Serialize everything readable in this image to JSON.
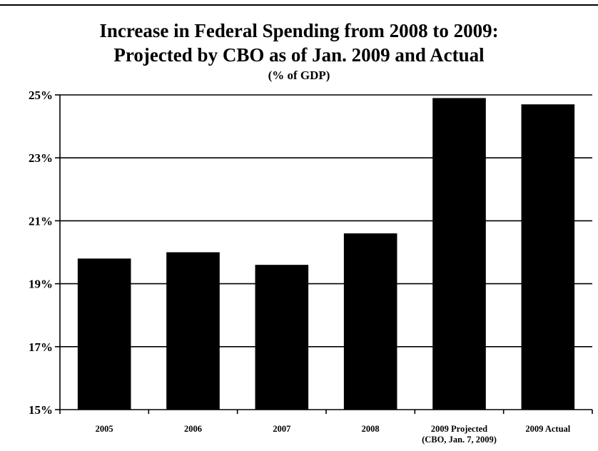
{
  "chart_data": {
    "type": "bar",
    "title_lines": [
      "Increase in Federal Spending from 2008 to 2009:",
      "Projected by CBO as of Jan. 2009 and Actual"
    ],
    "subtitle": "(% of GDP)",
    "categories": [
      [
        "2005"
      ],
      [
        "2006"
      ],
      [
        "2007"
      ],
      [
        "2008"
      ],
      [
        "2009 Projected",
        "(CBO, Jan. 7, 2009)"
      ],
      [
        "2009 Actual"
      ]
    ],
    "values": [
      19.8,
      20.0,
      19.6,
      20.6,
      24.9,
      24.7
    ],
    "ylim": [
      15,
      25
    ],
    "yticks": [
      15,
      17,
      19,
      21,
      23,
      25
    ],
    "ytick_labels": [
      "15%",
      "17%",
      "19%",
      "21%",
      "23%",
      "25%"
    ],
    "grid": true,
    "bar_color": "#000000"
  }
}
